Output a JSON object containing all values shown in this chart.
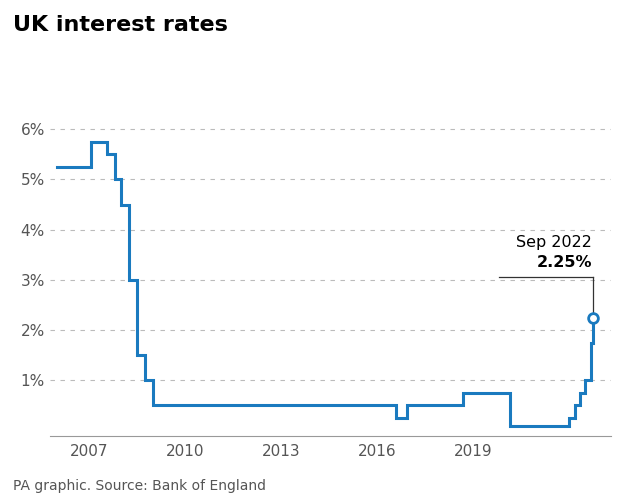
{
  "title": "UK interest rates",
  "subtitle": "PA graphic. Source: Bank of England",
  "line_color": "#1a7abf",
  "background_color": "#ffffff",
  "ylim": [
    -0.1,
    6.8
  ],
  "yticks": [
    1,
    2,
    3,
    4,
    5,
    6
  ],
  "ytick_labels": [
    "1%",
    "2%",
    "3%",
    "4%",
    "5%",
    "6%"
  ],
  "xlim": [
    2005.8,
    2023.3
  ],
  "xticks": [
    2007,
    2010,
    2013,
    2016,
    2019
  ],
  "ann_x": 2022.75,
  "ann_y": 2.25,
  "ann_line_top_y": 3.05,
  "ann_line_left_x": 2019.8,
  "rate_dates": [
    2006.0,
    2007.08,
    2007.58,
    2007.83,
    2008.0,
    2008.25,
    2008.5,
    2008.75,
    2009.0,
    2009.16,
    2009.33,
    2016.58,
    2016.92,
    2017.83,
    2018.67,
    2018.83,
    2019.75,
    2020.0,
    2020.16,
    2021.92,
    2022.0,
    2022.16,
    2022.33,
    2022.5,
    2022.67,
    2022.75
  ],
  "rate_values": [
    5.25,
    5.75,
    5.5,
    5.0,
    4.5,
    3.0,
    1.5,
    1.0,
    0.5,
    0.5,
    0.5,
    0.25,
    0.5,
    0.5,
    0.75,
    0.75,
    0.75,
    0.75,
    0.1,
    0.1,
    0.25,
    0.5,
    0.75,
    1.0,
    1.75,
    2.25
  ],
  "title_fontsize": 16,
  "tick_fontsize": 11,
  "caption_fontsize": 10
}
